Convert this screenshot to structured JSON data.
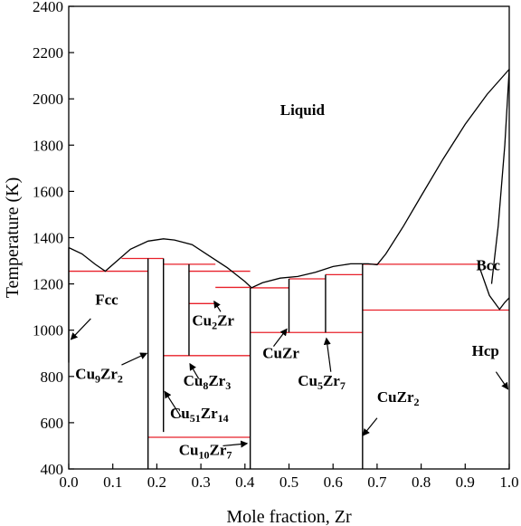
{
  "chart_data": {
    "type": "phase-diagram",
    "xlabel": "Mole fraction, Zr",
    "ylabel": "Temperature (K)",
    "xlim": [
      0.0,
      1.0
    ],
    "ylim": [
      400,
      2400
    ],
    "x_ticks": [
      "0.0",
      "0.1",
      "0.2",
      "0.3",
      "0.4",
      "0.5",
      "0.6",
      "0.7",
      "0.8",
      "0.9",
      "1.0"
    ],
    "y_ticks": [
      "400",
      "600",
      "800",
      "1000",
      "1200",
      "1400",
      "1600",
      "1800",
      "2000",
      "2200",
      "2400"
    ],
    "grid": false,
    "colors": {
      "boundary": "#000000",
      "invariant": "#e8202a"
    },
    "liquidus": [
      [
        0.0,
        1357
      ],
      [
        0.03,
        1330
      ],
      [
        0.06,
        1285
      ],
      [
        0.083,
        1255
      ],
      [
        0.11,
        1300
      ],
      [
        0.14,
        1350
      ],
      [
        0.18,
        1385
      ],
      [
        0.215,
        1395
      ],
      [
        0.24,
        1390
      ],
      [
        0.28,
        1370
      ],
      [
        0.32,
        1320
      ],
      [
        0.36,
        1270
      ],
      [
        0.4,
        1210
      ],
      [
        0.415,
        1183
      ],
      [
        0.44,
        1205
      ],
      [
        0.48,
        1225
      ],
      [
        0.52,
        1232
      ],
      [
        0.56,
        1250
      ],
      [
        0.6,
        1275
      ],
      [
        0.64,
        1287
      ],
      [
        0.68,
        1287
      ],
      [
        0.7,
        1283
      ],
      [
        0.72,
        1330
      ],
      [
        0.76,
        1450
      ],
      [
        0.8,
        1580
      ],
      [
        0.85,
        1740
      ],
      [
        0.9,
        1890
      ],
      [
        0.95,
        2020
      ],
      [
        1.0,
        2128
      ]
    ],
    "bcc_boundary": [
      [
        0.96,
        1200
      ],
      [
        0.975,
        1450
      ],
      [
        0.99,
        1800
      ],
      [
        1.0,
        2128
      ]
    ],
    "bcc_lower": [
      [
        0.93,
        1285
      ],
      [
        0.955,
        1150
      ],
      [
        0.978,
        1090
      ],
      [
        0.99,
        1120
      ],
      [
        1.0,
        1140
      ]
    ],
    "fcc_solvus": [
      [
        0.0,
        1357
      ],
      [
        0.0,
        860
      ]
    ],
    "compound_lines": [
      {
        "name": "Cu9Zr2",
        "x": 0.18,
        "y": [
          400,
          1310
        ]
      },
      {
        "name": "Cu51Zr14",
        "x": 0.215,
        "y": [
          560,
          1310
        ]
      },
      {
        "name": "Cu8Zr3",
        "x": 0.273,
        "y": [
          890,
          1285
        ]
      },
      {
        "name": "Cu10Zr7",
        "x": 0.412,
        "y": [
          400,
          1183
        ]
      },
      {
        "name": "CuZr",
        "x": 0.5,
        "y": [
          990,
          1222
        ]
      },
      {
        "name": "Cu5Zr7",
        "x": 0.583,
        "y": [
          990,
          1240
        ]
      },
      {
        "name": "CuZr2",
        "x": 0.667,
        "y": [
          400,
          1287
        ]
      }
    ],
    "invariant_lines": [
      {
        "T": 1255,
        "x": [
          0.0,
          0.18
        ]
      },
      {
        "T": 1310,
        "x": [
          0.12,
          0.215
        ]
      },
      {
        "T": 1285,
        "x": [
          0.215,
          0.333
        ]
      },
      {
        "T": 1255,
        "x": [
          0.273,
          0.412
        ]
      },
      {
        "T": 1185,
        "x": [
          0.333,
          0.412
        ]
      },
      {
        "T": 1115,
        "x": [
          0.273,
          0.333
        ]
      },
      {
        "T": 890,
        "x": [
          0.215,
          0.412
        ]
      },
      {
        "T": 537,
        "x": [
          0.18,
          0.412
        ]
      },
      {
        "T": 1183,
        "x": [
          0.412,
          0.5
        ]
      },
      {
        "T": 1222,
        "x": [
          0.5,
          0.583
        ]
      },
      {
        "T": 1240,
        "x": [
          0.583,
          0.667
        ]
      },
      {
        "T": 990,
        "x": [
          0.412,
          0.667
        ]
      },
      {
        "T": 1285,
        "x": [
          0.667,
          0.93
        ]
      },
      {
        "T": 1087,
        "x": [
          0.667,
          1.0
        ]
      }
    ],
    "labels": [
      {
        "id": "liquid",
        "text": "Liquid",
        "sub": "",
        "rest": "",
        "sub2": "",
        "x": 0.48,
        "T": 1930
      },
      {
        "id": "fcc",
        "text": "Fcc",
        "sub": "",
        "rest": "",
        "sub2": "",
        "x": 0.06,
        "T": 1110
      },
      {
        "id": "bcc",
        "text": "Bcc",
        "sub": "",
        "rest": "",
        "sub2": "",
        "x": 0.925,
        "T": 1260
      },
      {
        "id": "hcp",
        "text": "Hcp",
        "sub": "",
        "rest": "",
        "sub2": "",
        "x": 0.915,
        "T": 890
      },
      {
        "id": "cu9zr2",
        "text": "Cu",
        "sub": "9",
        "rest": "Zr",
        "sub2": "2",
        "x": 0.015,
        "T": 790
      },
      {
        "id": "cu2zr",
        "text": "Cu",
        "sub": "2",
        "rest": "Zr",
        "sub2": "",
        "x": 0.28,
        "T": 1020
      },
      {
        "id": "cu8zr3",
        "text": "Cu",
        "sub": "8",
        "rest": "Zr",
        "sub2": "3",
        "x": 0.26,
        "T": 760
      },
      {
        "id": "cu51zr14",
        "text": "Cu",
        "sub": "51",
        "rest": "Zr",
        "sub2": "14",
        "x": 0.23,
        "T": 620
      },
      {
        "id": "cu10zr7",
        "text": "Cu",
        "sub": "10",
        "rest": "Zr",
        "sub2": "7",
        "x": 0.25,
        "T": 460
      },
      {
        "id": "cuzr",
        "text": "CuZr",
        "sub": "",
        "rest": "",
        "sub2": "",
        "x": 0.44,
        "T": 880
      },
      {
        "id": "cu5zr7",
        "text": "Cu",
        "sub": "5",
        "rest": "Zr",
        "sub2": "7",
        "x": 0.52,
        "T": 760
      },
      {
        "id": "cuzr2",
        "text": "CuZr",
        "sub": "2",
        "rest": "",
        "sub2": "",
        "x": 0.7,
        "T": 690
      }
    ],
    "arrows": [
      {
        "name": "fcc-arrow",
        "from": [
          0.05,
          1050
        ],
        "to": [
          0.005,
          960
        ]
      },
      {
        "name": "cu9zr2-arrow",
        "from": [
          0.12,
          850
        ],
        "to": [
          0.177,
          900
        ]
      },
      {
        "name": "cu2zr-arrow",
        "from": [
          0.345,
          1080
        ],
        "to": [
          0.33,
          1125
        ]
      },
      {
        "name": "cu8zr3-arrow",
        "from": [
          0.295,
          790
        ],
        "to": [
          0.275,
          855
        ]
      },
      {
        "name": "cu51zr14-arrow",
        "from": [
          0.255,
          625
        ],
        "to": [
          0.218,
          735
        ]
      },
      {
        "name": "cu10zr7-arrow",
        "from": [
          0.35,
          500
        ],
        "to": [
          0.405,
          510
        ]
      },
      {
        "name": "cuzr-arrow",
        "from": [
          0.465,
          930
        ],
        "to": [
          0.495,
          1005
        ]
      },
      {
        "name": "cu5zr7-arrow",
        "from": [
          0.595,
          820
        ],
        "to": [
          0.585,
          965
        ]
      },
      {
        "name": "cuzr2-arrow",
        "from": [
          0.7,
          620
        ],
        "to": [
          0.668,
          545
        ]
      },
      {
        "name": "hcp-arrow",
        "from": [
          0.97,
          820
        ],
        "to": [
          0.997,
          745
        ]
      }
    ]
  }
}
